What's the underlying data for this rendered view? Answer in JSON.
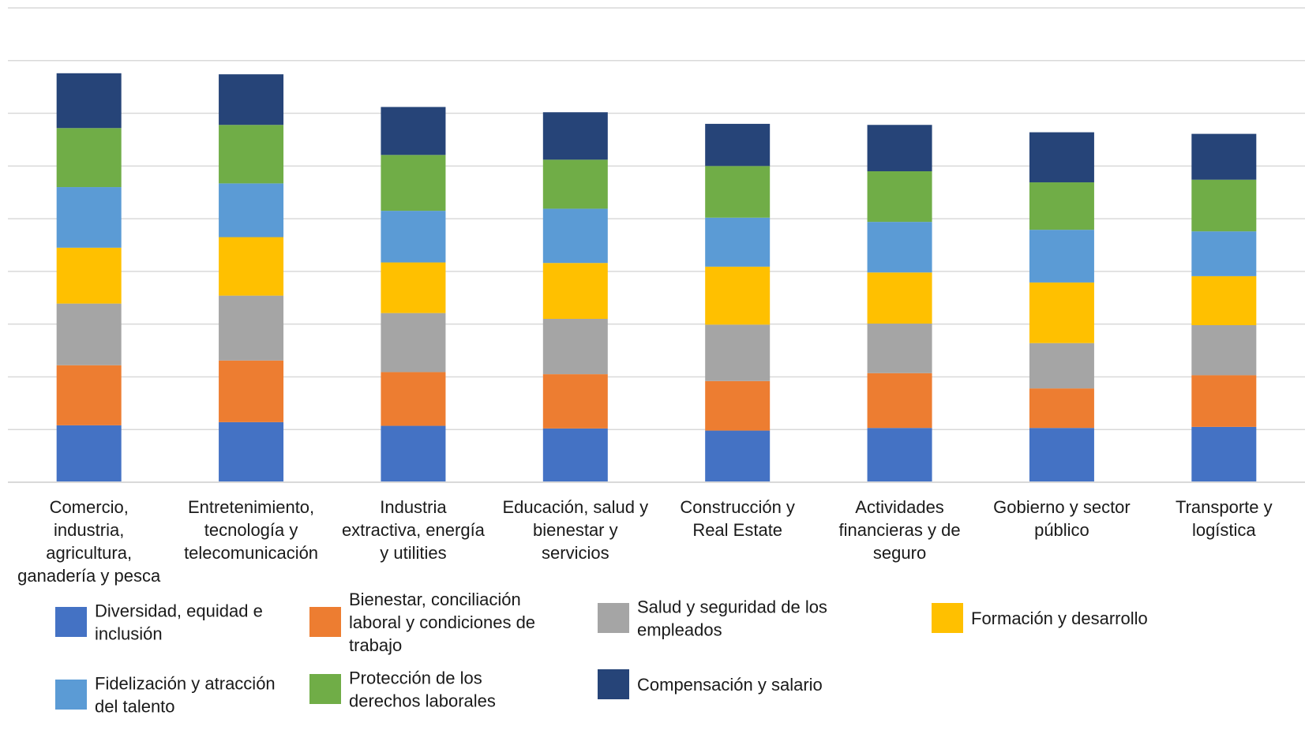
{
  "chart_data": {
    "type": "bar",
    "stacked": true,
    "title": "",
    "xlabel": "",
    "ylabel": "",
    "ylim": [
      0,
      9
    ],
    "grid": true,
    "legend_position": "bottom",
    "categories": [
      [
        "Comercio,",
        "industria,",
        "agricultura,",
        "ganadería y pesca"
      ],
      [
        "Entretenimiento,",
        "tecnología y",
        "telecomunicación"
      ],
      [
        "Industria",
        "extractiva, energía",
        "y utilities"
      ],
      [
        "Educación, salud y",
        "bienestar y",
        "servicios"
      ],
      [
        "Construcción y",
        "Real Estate"
      ],
      [
        "Actividades",
        "financieras y de",
        "seguro"
      ],
      [
        "Gobierno y sector",
        "público"
      ],
      [
        "Transporte y",
        "logística"
      ]
    ],
    "series": [
      {
        "name": [
          "Diversidad, equidad e",
          "inclusión"
        ],
        "color": "#4472C4",
        "values": [
          1.08,
          1.14,
          1.07,
          1.02,
          0.98,
          1.03,
          1.03,
          1.05
        ]
      },
      {
        "name": [
          "Bienestar, conciliación",
          "laboral y condiciones de",
          "trabajo"
        ],
        "color": "#ED7D31",
        "values": [
          1.14,
          1.17,
          1.02,
          1.03,
          0.94,
          1.04,
          0.75,
          0.98
        ]
      },
      {
        "name": [
          "Salud y seguridad de los",
          "empleados"
        ],
        "color": "#A5A5A5",
        "values": [
          1.17,
          1.23,
          1.12,
          1.05,
          1.07,
          0.94,
          0.86,
          0.95
        ]
      },
      {
        "name": [
          "Formación y desarrollo"
        ],
        "color": "#FFC000",
        "values": [
          1.06,
          1.11,
          0.96,
          1.06,
          1.1,
          0.97,
          1.15,
          0.93
        ]
      },
      {
        "name": [
          "Fidelización y atracción",
          "del talento"
        ],
        "color": "#5B9BD5",
        "values": [
          1.15,
          1.02,
          0.98,
          1.03,
          0.93,
          0.96,
          1.0,
          0.85
        ]
      },
      {
        "name": [
          "Protección de los",
          "derechos laborales"
        ],
        "color": "#70AD47",
        "values": [
          1.12,
          1.11,
          1.06,
          0.93,
          0.98,
          0.96,
          0.9,
          0.98
        ]
      },
      {
        "name": [
          "Compensación y salario"
        ],
        "color": "#264478",
        "values": [
          1.04,
          0.96,
          0.91,
          0.9,
          0.8,
          0.88,
          0.95,
          0.87
        ]
      }
    ]
  }
}
